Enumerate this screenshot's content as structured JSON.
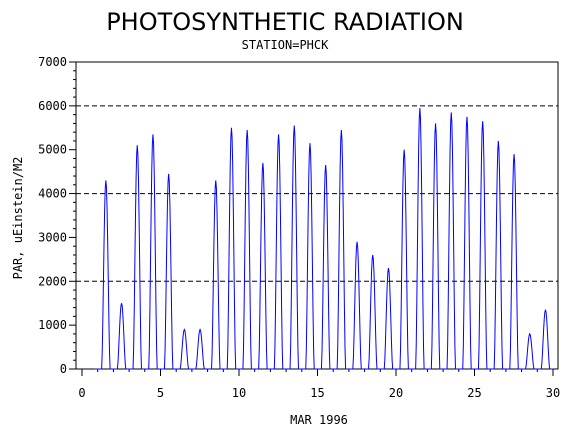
{
  "chart_data": {
    "type": "line",
    "title": "PHOTOSYNTHETIC RADIATION",
    "subtitle": "STATION=PHCK",
    "xlabel": "MAR 1996",
    "ylabel": "PAR, uEinstein/M2",
    "xlim": [
      0,
      30
    ],
    "ylim": [
      0,
      7000
    ],
    "x_ticks": [
      0,
      5,
      10,
      15,
      20,
      25,
      30
    ],
    "y_ticks": [
      0,
      1000,
      2000,
      3000,
      4000,
      5000,
      6000,
      7000
    ],
    "x_tick_labels": [
      "0",
      "5",
      "10",
      "15",
      "20",
      "25",
      "30"
    ],
    "y_tick_labels": [
      "0",
      "1000",
      "2000",
      "3000",
      "4000",
      "5000",
      "6000",
      "7000"
    ],
    "reference_lines_y": [
      2000,
      4000,
      6000
    ],
    "grid": false,
    "series_color": "#0000ff",
    "daily_peaks": [
      {
        "day": 1,
        "peak": 4300
      },
      {
        "day": 2,
        "peak": 1500
      },
      {
        "day": 3,
        "peak": 5100
      },
      {
        "day": 4,
        "peak": 5350
      },
      {
        "day": 5,
        "peak": 4450
      },
      {
        "day": 6,
        "peak": 900
      },
      {
        "day": 7,
        "peak": 900
      },
      {
        "day": 8,
        "peak": 4300
      },
      {
        "day": 9,
        "peak": 5500
      },
      {
        "day": 10,
        "peak": 5450
      },
      {
        "day": 11,
        "peak": 4700
      },
      {
        "day": 12,
        "peak": 5350
      },
      {
        "day": 13,
        "peak": 5550
      },
      {
        "day": 14,
        "peak": 5150
      },
      {
        "day": 15,
        "peak": 4650
      },
      {
        "day": 16,
        "peak": 5450
      },
      {
        "day": 17,
        "peak": 2900
      },
      {
        "day": 18,
        "peak": 2600
      },
      {
        "day": 19,
        "peak": 2300
      },
      {
        "day": 20,
        "peak": 5000
      },
      {
        "day": 21,
        "peak": 5950
      },
      {
        "day": 22,
        "peak": 5600
      },
      {
        "day": 23,
        "peak": 5850
      },
      {
        "day": 24,
        "peak": 5750
      },
      {
        "day": 25,
        "peak": 5650
      },
      {
        "day": 26,
        "peak": 5200
      },
      {
        "day": 27,
        "peak": 4900
      },
      {
        "day": 28,
        "peak": 800
      },
      {
        "day": 29,
        "peak": 1350
      }
    ]
  }
}
